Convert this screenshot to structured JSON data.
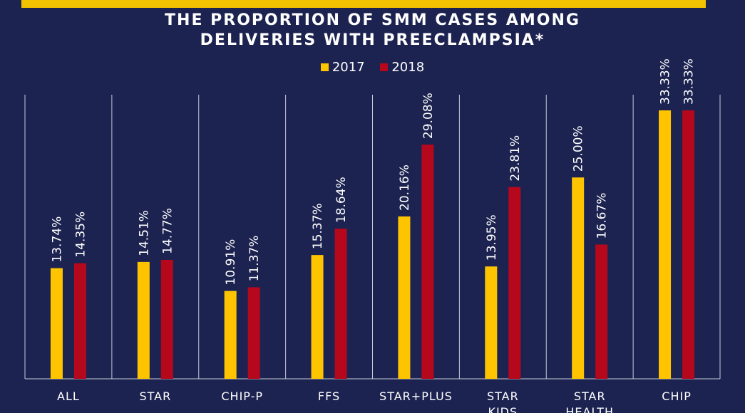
{
  "colors": {
    "background": "#1c2350",
    "accent_rule": "#f2c100",
    "series_2017": "#ffc400",
    "series_2018": "#b5081c",
    "gridline": "#c8cbd8",
    "text": "#ffffff"
  },
  "chart_data": {
    "type": "bar",
    "title_lines": [
      "THE PROPORTION OF SMM CASES AMONG",
      "DELIVERIES WITH PREECLAMPSIA*"
    ],
    "categories": [
      [
        "ALL"
      ],
      [
        "STAR"
      ],
      [
        "CHIP-P"
      ],
      [
        "FFS"
      ],
      [
        "STAR+PLUS"
      ],
      [
        "STAR",
        "KIDS"
      ],
      [
        "STAR",
        "HEALTH"
      ],
      [
        "CHIP"
      ]
    ],
    "series": [
      {
        "name": "2017",
        "values": [
          13.74,
          14.51,
          10.91,
          15.37,
          20.16,
          13.95,
          25.0,
          33.33
        ],
        "labels": [
          "13.74%",
          "14.51%",
          "10.91%",
          "15.37%",
          "20.16%",
          "13.95%",
          "25.00%",
          "33.33%"
        ]
      },
      {
        "name": "2018",
        "values": [
          14.35,
          14.77,
          11.37,
          18.64,
          29.08,
          23.81,
          16.67,
          33.33
        ],
        "labels": [
          "14.35%",
          "14.77%",
          "11.37%",
          "18.64%",
          "29.08%",
          "23.81%",
          "16.67%",
          "33.33%"
        ]
      }
    ],
    "ylim": [
      0,
      37
    ],
    "grid": "vertical category separators",
    "legend_position": "top-center"
  }
}
